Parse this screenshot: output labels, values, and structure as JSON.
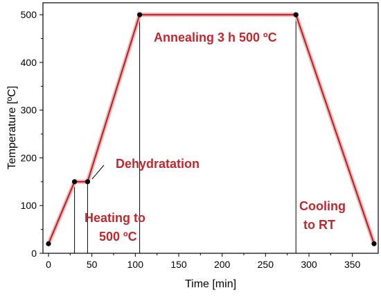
{
  "chart_data": {
    "type": "line",
    "xlabel": "Time [min]",
    "ylabel": "Temperature [ºC]",
    "xlim": [
      0,
      375
    ],
    "ylim": [
      0,
      525
    ],
    "x_ticks": [
      0,
      50,
      100,
      150,
      200,
      250,
      300,
      350
    ],
    "y_ticks": [
      0,
      100,
      200,
      300,
      400,
      500
    ],
    "series": [
      {
        "x": [
          0,
          30,
          45,
          105,
          285,
          375
        ],
        "y": [
          20,
          150,
          150,
          500,
          500,
          20
        ]
      }
    ],
    "vlines": [
      30,
      45,
      105,
      285
    ],
    "annotations": [
      {
        "text": "Dehydratation"
      },
      {
        "text": "Heating to"
      },
      {
        "text": "500 ºC"
      },
      {
        "text": "Annealing 3 h 500 ºC"
      },
      {
        "text": "Cooling"
      },
      {
        "text": "to RT"
      }
    ],
    "colors": {
      "line": "#b5231f",
      "halo": "#f3b3b8",
      "text": "#c0282e",
      "marker": "#000000"
    }
  }
}
